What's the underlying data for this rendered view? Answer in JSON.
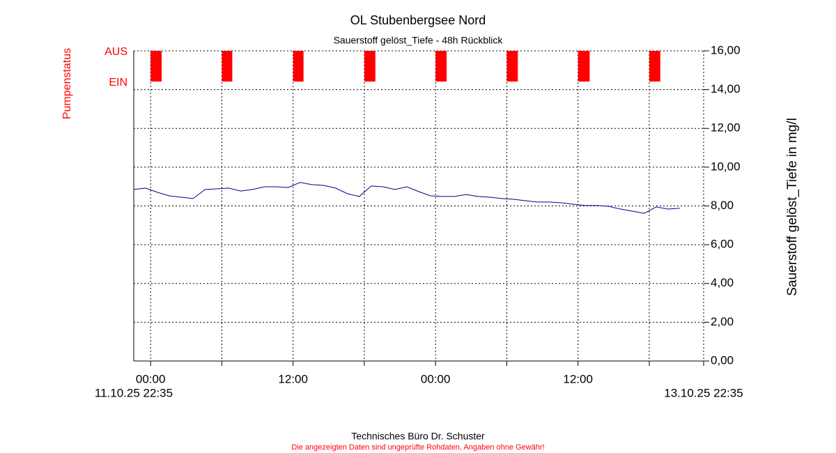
{
  "chart_data": {
    "type": "line",
    "title": "OL Stubenbergsee Nord",
    "subtitle": "Sauerstoff gelöst_Tiefe - 48h Rückblick",
    "y_label": "Sauerstoff gelöst_Tiefe in mg/l",
    "pump_label": "Pumpenstatus",
    "pump_states": [
      "AUS",
      "EIN"
    ],
    "pump_color": "#ff0000",
    "pump_on": [
      [
        1.42,
        2.35
      ],
      [
        7.42,
        8.3
      ],
      [
        13.42,
        14.3
      ],
      [
        19.42,
        20.35
      ],
      [
        25.42,
        26.35
      ],
      [
        31.42,
        32.35
      ],
      [
        37.42,
        38.4
      ],
      [
        43.42,
        44.35
      ]
    ],
    "x": [
      0,
      1,
      2,
      3,
      4,
      5,
      6,
      7,
      8,
      9,
      10,
      11,
      12,
      13,
      14,
      15,
      16,
      17,
      18,
      19,
      20,
      21,
      22,
      23,
      24,
      25,
      26,
      27,
      28,
      29,
      30,
      31,
      32,
      33,
      34,
      35,
      36,
      37,
      38,
      39,
      40,
      41,
      42,
      43,
      44,
      45,
      46
    ],
    "values": [
      8.85,
      8.92,
      8.7,
      8.52,
      8.45,
      8.38,
      8.85,
      8.88,
      8.92,
      8.77,
      8.85,
      8.99,
      8.99,
      8.95,
      9.21,
      9.1,
      9.06,
      8.92,
      8.63,
      8.49,
      9.03,
      8.99,
      8.85,
      8.99,
      8.74,
      8.52,
      8.49,
      8.49,
      8.59,
      8.49,
      8.45,
      8.38,
      8.34,
      8.27,
      8.2,
      8.2,
      8.16,
      8.09,
      8.02,
      8.02,
      7.98,
      7.84,
      7.73,
      7.62,
      7.95,
      7.84,
      7.88
    ],
    "color": "#00008b",
    "xlim": [
      0,
      48
    ],
    "xlim_labels": [
      "11.10.25 22:35",
      "13.10.25 22:35"
    ],
    "xticks": [
      {
        "value": 1.42,
        "label": "00:00"
      },
      {
        "value": 13.42,
        "label": "12:00"
      },
      {
        "value": 25.42,
        "label": "00:00"
      },
      {
        "value": 37.42,
        "label": "12:00"
      }
    ],
    "xgrid": [
      1.42,
      7.42,
      13.42,
      19.42,
      25.42,
      31.42,
      37.42,
      43.42,
      48
    ],
    "ylim": [
      0,
      16
    ],
    "yticks": [
      {
        "value": 0,
        "label": "0,00"
      },
      {
        "value": 2,
        "label": "2,00"
      },
      {
        "value": 4,
        "label": "4,00"
      },
      {
        "value": 6,
        "label": "6,00"
      },
      {
        "value": 8,
        "label": "8,00"
      },
      {
        "value": 10,
        "label": "10,00"
      },
      {
        "value": 12,
        "label": "12,00"
      },
      {
        "value": 14,
        "label": "14,00"
      },
      {
        "value": 16,
        "label": "16,00"
      }
    ],
    "grid": true,
    "footer": "Technisches Büro Dr. Schuster",
    "disclaimer": "Die angezeigten Daten sind ungeprüfte Rohdaten, Angaben ohne Gewähr!"
  }
}
